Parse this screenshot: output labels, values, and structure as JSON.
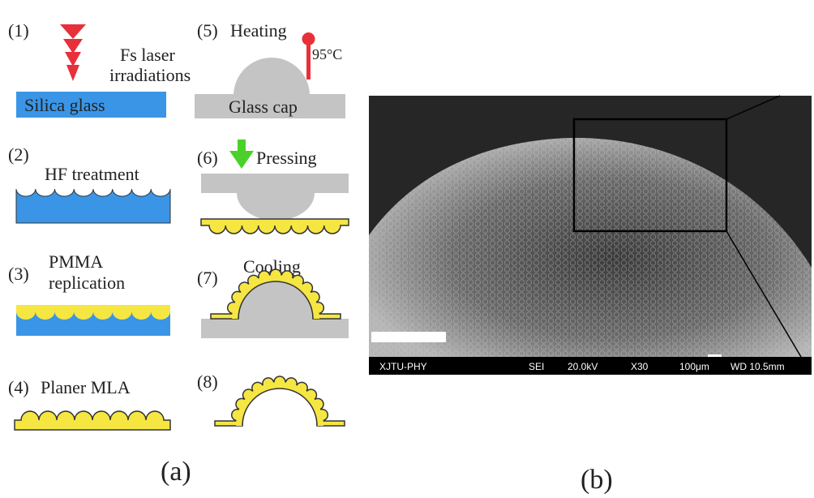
{
  "panel_a": {
    "label": "(a)",
    "steps": [
      {
        "number": "(1)",
        "caption": [
          "Fs laser",
          "irradiations"
        ],
        "substrate": "Silica glass"
      },
      {
        "number": "(2)",
        "caption": [
          "HF treatment"
        ]
      },
      {
        "number": "(3)",
        "caption": [
          "PMMA",
          "replication"
        ]
      },
      {
        "number": "(4)",
        "caption": [
          "Planer MLA"
        ]
      },
      {
        "number": "(5)",
        "caption": [
          "Heating"
        ],
        "temperature": "95°C",
        "substrate": "Glass cap"
      },
      {
        "number": "(6)",
        "caption": [
          "Pressing"
        ]
      },
      {
        "number": "(7)",
        "caption": [
          "Cooling"
        ]
      },
      {
        "number": "(8)"
      }
    ]
  },
  "panel_b": {
    "label": "(b)",
    "info_bar": [
      "XJTU-PHY",
      "SEI",
      "20.0kV",
      "X30",
      "100μm",
      "WD 10.5mm"
    ]
  }
}
